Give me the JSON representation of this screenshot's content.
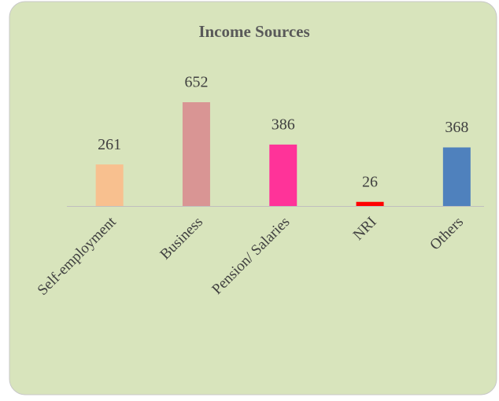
{
  "chart_data": {
    "type": "bar",
    "title": "Income Sources",
    "categories": [
      "Self-employment",
      "Business",
      "Pension/ Salaries",
      "NRI",
      "Others"
    ],
    "values": [
      261,
      652,
      386,
      26,
      368
    ],
    "colors": [
      "#f8c08f",
      "#d99594",
      "#ff3399",
      "#ff0000",
      "#4f81bd"
    ]
  }
}
